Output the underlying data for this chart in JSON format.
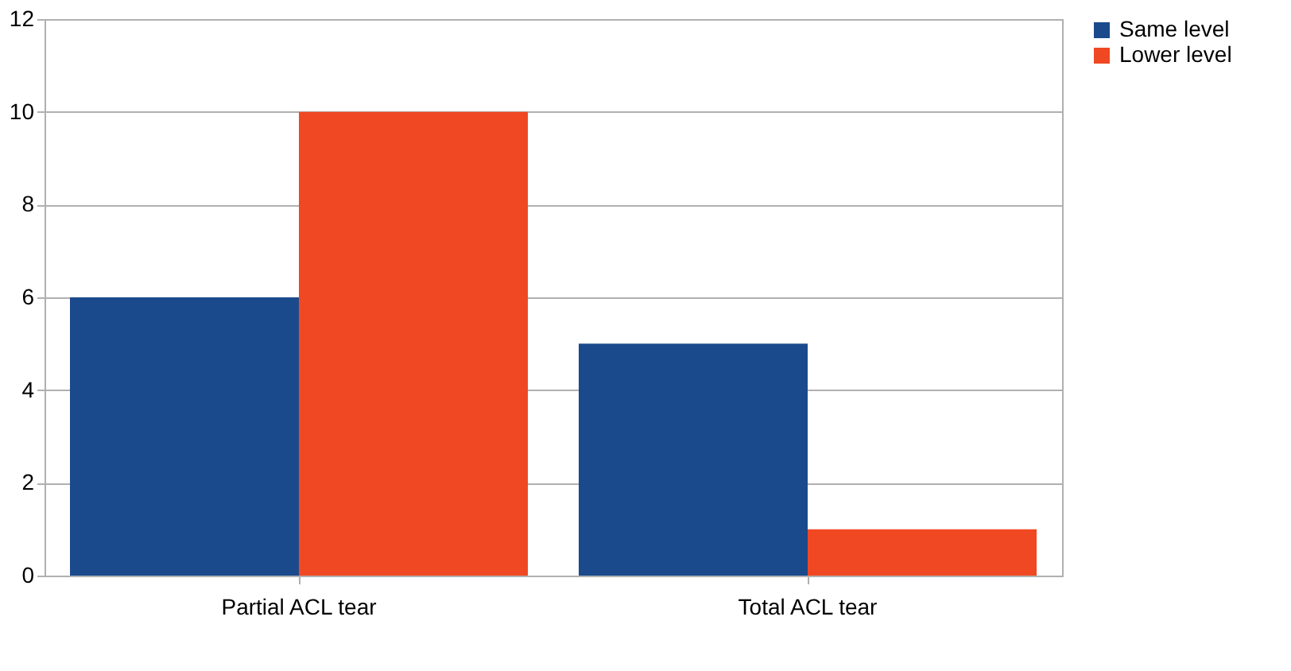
{
  "chart_data": {
    "type": "bar",
    "categories": [
      "Partial ACL tear",
      "Total ACL tear"
    ],
    "series": [
      {
        "name": "Same level",
        "color": "#1b4a8c",
        "values": [
          6,
          5
        ]
      },
      {
        "name": "Lower level",
        "color": "#f04822",
        "values": [
          10,
          1
        ]
      }
    ],
    "ylim": [
      0,
      12
    ],
    "yticks": [
      0,
      2,
      4,
      6,
      8,
      10,
      12
    ],
    "grid": "y",
    "legend": "right"
  }
}
